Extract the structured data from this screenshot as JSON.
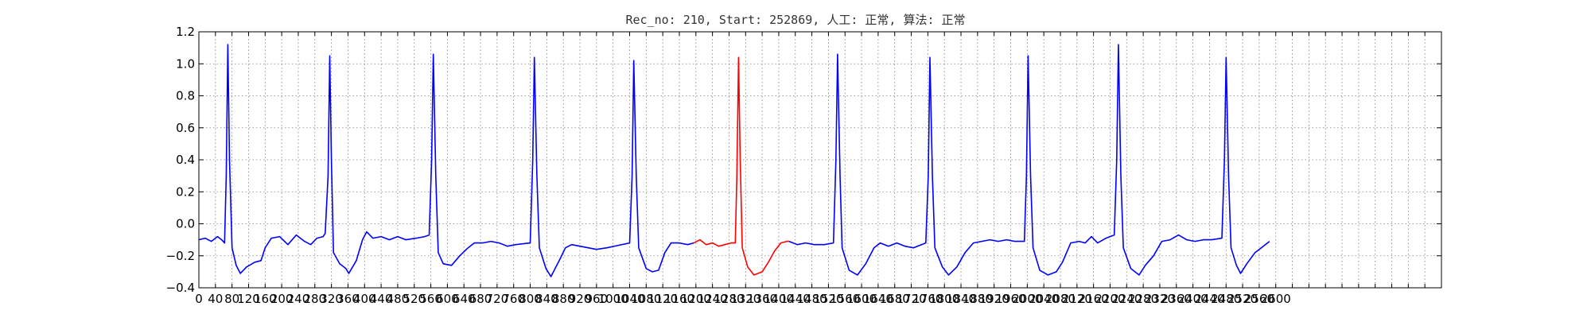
{
  "chart_data": {
    "type": "line",
    "title": "Rec_no: 210, Start: 252869, 人工: 正常, 算法: 正常",
    "xlabel": "",
    "ylabel": "",
    "xlim": [
      0,
      3000
    ],
    "ylim": [
      -0.4,
      1.2
    ],
    "grid": true,
    "yticks": [
      "−0.4",
      "−0.2",
      "0.0",
      "0.2",
      "0.4",
      "0.6",
      "0.8",
      "1.0",
      "1.2"
    ],
    "ytick_values": [
      -0.4,
      -0.2,
      0.0,
      0.2,
      0.4,
      0.6,
      0.8,
      1.0,
      1.2
    ],
    "xtick_labels": [
      "0",
      "40",
      "80",
      "120",
      "160",
      "200",
      "240",
      "280",
      "320",
      "360",
      "400",
      "440",
      "480",
      "520",
      "560",
      "600",
      "640",
      "680",
      "720",
      "760",
      "800",
      "840",
      "880",
      "920",
      "960",
      "1000",
      "1040",
      "1080",
      "1120",
      "1160",
      "1200",
      "1240",
      "1280",
      "1320",
      "1360",
      "1400",
      "1440",
      "1480",
      "1520",
      "1560",
      "1600",
      "1640",
      "1680",
      "1720",
      "1760",
      "1800",
      "1840",
      "1880",
      "1920",
      "1960",
      "2000",
      "2040",
      "2080",
      "2120",
      "2160",
      "2200",
      "2240",
      "2280",
      "2320",
      "2360",
      "2400",
      "2440",
      "2480",
      "2520",
      "2560",
      "2600"
    ],
    "xtick_values": [
      0,
      40,
      80,
      120,
      160,
      200,
      240,
      280,
      320,
      360,
      400,
      440,
      480,
      520,
      560,
      600,
      640,
      680,
      720,
      760,
      800,
      840,
      880,
      920,
      960,
      1000,
      1040,
      1080,
      1120,
      1160,
      1200,
      1240,
      1280,
      1320,
      1360,
      1400,
      1440,
      1480,
      1520,
      1560,
      1600,
      1640,
      1680,
      1720,
      1760,
      1800,
      1840,
      1880,
      1920,
      1960,
      2000,
      2040,
      2080,
      2120,
      2160,
      2200,
      2240,
      2280,
      2320,
      2360,
      2400,
      2440,
      2480,
      2520,
      2560,
      2600
    ],
    "xgrid_values": [
      0,
      40,
      80,
      120,
      160,
      200,
      240,
      280,
      320,
      360,
      400,
      440,
      480,
      520,
      560,
      600,
      640,
      680,
      720,
      760,
      800,
      840,
      880,
      920,
      960,
      1000,
      1040,
      1080,
      1120,
      1160,
      1200,
      1240,
      1280,
      1320,
      1360,
      1400,
      1440,
      1480,
      1520,
      1560,
      1600,
      1640,
      1680,
      1720,
      1760,
      1800,
      1840,
      1880,
      1920,
      1960,
      2000,
      2040,
      2080,
      2120,
      2160,
      2200,
      2240,
      2280,
      2320,
      2360,
      2400,
      2440,
      2480,
      2520,
      2560,
      2600,
      2640,
      2680,
      2720,
      2760,
      2800,
      2840,
      2880,
      2920,
      2960,
      3000
    ],
    "colors": {
      "normal": "#0000ff",
      "highlight": "#ff0000",
      "axes": "#000000",
      "grid": "#7f7f7f"
    },
    "series": [
      {
        "color": "#0000ff",
        "points": [
          [
            0,
            -0.1
          ],
          [
            15,
            -0.09
          ],
          [
            30,
            -0.11
          ],
          [
            45,
            -0.08
          ],
          [
            55,
            -0.1
          ],
          [
            62,
            -0.12
          ],
          [
            66,
            0.3
          ],
          [
            70,
            1.12
          ],
          [
            74,
            0.4
          ],
          [
            80,
            -0.15
          ],
          [
            90,
            -0.26
          ],
          [
            100,
            -0.31
          ],
          [
            115,
            -0.27
          ],
          [
            135,
            -0.24
          ],
          [
            150,
            -0.23
          ],
          [
            160,
            -0.15
          ],
          [
            175,
            -0.09
          ],
          [
            195,
            -0.08
          ],
          [
            215,
            -0.13
          ],
          [
            235,
            -0.07
          ],
          [
            255,
            -0.11
          ],
          [
            270,
            -0.13
          ],
          [
            285,
            -0.09
          ],
          [
            300,
            -0.08
          ],
          [
            305,
            -0.06
          ],
          [
            312,
            0.3
          ],
          [
            316,
            1.05
          ],
          [
            320,
            0.4
          ],
          [
            325,
            -0.18
          ],
          [
            340,
            -0.25
          ],
          [
            355,
            -0.28
          ],
          [
            362,
            -0.31
          ],
          [
            380,
            -0.23
          ],
          [
            395,
            -0.1
          ],
          [
            405,
            -0.05
          ],
          [
            420,
            -0.09
          ],
          [
            440,
            -0.08
          ],
          [
            460,
            -0.1
          ],
          [
            480,
            -0.08
          ],
          [
            500,
            -0.1
          ],
          [
            525,
            -0.09
          ],
          [
            545,
            -0.08
          ],
          [
            556,
            -0.07
          ],
          [
            562,
            0.4
          ],
          [
            566,
            1.06
          ],
          [
            572,
            0.3
          ],
          [
            578,
            -0.18
          ],
          [
            590,
            -0.25
          ],
          [
            610,
            -0.26
          ],
          [
            630,
            -0.2
          ],
          [
            650,
            -0.15
          ],
          [
            665,
            -0.12
          ],
          [
            685,
            -0.12
          ],
          [
            705,
            -0.11
          ],
          [
            725,
            -0.12
          ],
          [
            745,
            -0.14
          ],
          [
            765,
            -0.13
          ],
          [
            800,
            -0.12
          ],
          [
            806,
            0.4
          ],
          [
            810,
            1.04
          ],
          [
            816,
            0.3
          ],
          [
            822,
            -0.15
          ],
          [
            838,
            -0.28
          ],
          [
            850,
            -0.33
          ],
          [
            870,
            -0.23
          ],
          [
            885,
            -0.15
          ],
          [
            900,
            -0.13
          ],
          [
            920,
            -0.14
          ],
          [
            940,
            -0.15
          ],
          [
            960,
            -0.16
          ],
          [
            985,
            -0.15
          ],
          [
            1040,
            -0.12
          ],
          [
            1046,
            0.3
          ],
          [
            1050,
            1.02
          ],
          [
            1056,
            0.3
          ],
          [
            1062,
            -0.15
          ],
          [
            1080,
            -0.28
          ],
          [
            1095,
            -0.3
          ],
          [
            1110,
            -0.29
          ],
          [
            1125,
            -0.18
          ],
          [
            1140,
            -0.12
          ],
          [
            1160,
            -0.12
          ],
          [
            1180,
            -0.13
          ],
          [
            1195,
            -0.12
          ]
        ]
      },
      {
        "color": "#ff0000",
        "points": [
          [
            1195,
            -0.12
          ],
          [
            1210,
            -0.1
          ],
          [
            1225,
            -0.13
          ],
          [
            1240,
            -0.12
          ],
          [
            1255,
            -0.14
          ],
          [
            1270,
            -0.13
          ],
          [
            1285,
            -0.12
          ],
          [
            1295,
            -0.12
          ],
          [
            1299,
            0.3
          ],
          [
            1303,
            1.04
          ],
          [
            1307,
            0.4
          ],
          [
            1312,
            -0.15
          ],
          [
            1325,
            -0.27
          ],
          [
            1340,
            -0.32
          ],
          [
            1360,
            -0.3
          ],
          [
            1375,
            -0.24
          ],
          [
            1390,
            -0.17
          ],
          [
            1405,
            -0.12
          ],
          [
            1420,
            -0.11
          ],
          [
            1425,
            -0.11
          ]
        ]
      },
      {
        "color": "#0000ff",
        "points": [
          [
            1425,
            -0.11
          ],
          [
            1445,
            -0.13
          ],
          [
            1465,
            -0.12
          ],
          [
            1485,
            -0.13
          ],
          [
            1510,
            -0.13
          ],
          [
            1532,
            -0.12
          ],
          [
            1538,
            0.4
          ],
          [
            1542,
            1.06
          ],
          [
            1548,
            0.3
          ],
          [
            1553,
            -0.15
          ],
          [
            1570,
            -0.29
          ],
          [
            1590,
            -0.32
          ],
          [
            1610,
            -0.25
          ],
          [
            1630,
            -0.15
          ],
          [
            1645,
            -0.12
          ],
          [
            1665,
            -0.14
          ],
          [
            1685,
            -0.12
          ],
          [
            1705,
            -0.14
          ],
          [
            1725,
            -0.15
          ],
          [
            1755,
            -0.12
          ],
          [
            1761,
            0.3
          ],
          [
            1765,
            1.04
          ],
          [
            1771,
            0.3
          ],
          [
            1777,
            -0.15
          ],
          [
            1795,
            -0.27
          ],
          [
            1810,
            -0.32
          ],
          [
            1830,
            -0.27
          ],
          [
            1850,
            -0.18
          ],
          [
            1870,
            -0.12
          ],
          [
            1890,
            -0.11
          ],
          [
            1910,
            -0.1
          ],
          [
            1930,
            -0.11
          ],
          [
            1950,
            -0.1
          ],
          [
            1970,
            -0.11
          ],
          [
            1993,
            -0.11
          ],
          [
            1998,
            0.3
          ],
          [
            2002,
            1.05
          ],
          [
            2008,
            0.3
          ],
          [
            2014,
            -0.15
          ],
          [
            2030,
            -0.29
          ],
          [
            2050,
            -0.32
          ],
          [
            2070,
            -0.3
          ],
          [
            2085,
            -0.24
          ],
          [
            2105,
            -0.12
          ],
          [
            2125,
            -0.11
          ],
          [
            2140,
            -0.12
          ],
          [
            2155,
            -0.08
          ],
          [
            2170,
            -0.12
          ],
          [
            2190,
            -0.09
          ],
          [
            2210,
            -0.07
          ],
          [
            2216,
            0.4
          ],
          [
            2220,
            1.12
          ],
          [
            2226,
            0.3
          ],
          [
            2232,
            -0.15
          ],
          [
            2250,
            -0.28
          ],
          [
            2270,
            -0.32
          ],
          [
            2285,
            -0.26
          ],
          [
            2305,
            -0.2
          ],
          [
            2325,
            -0.11
          ],
          [
            2345,
            -0.1
          ],
          [
            2365,
            -0.07
          ],
          [
            2385,
            -0.1
          ],
          [
            2405,
            -0.11
          ],
          [
            2425,
            -0.1
          ],
          [
            2445,
            -0.1
          ],
          [
            2470,
            -0.09
          ],
          [
            2476,
            0.4
          ],
          [
            2480,
            1.04
          ],
          [
            2486,
            0.3
          ],
          [
            2492,
            -0.15
          ],
          [
            2505,
            -0.26
          ],
          [
            2515,
            -0.31
          ],
          [
            2530,
            -0.25
          ],
          [
            2550,
            -0.18
          ],
          [
            2570,
            -0.14
          ],
          [
            2585,
            -0.11
          ]
        ]
      }
    ]
  }
}
